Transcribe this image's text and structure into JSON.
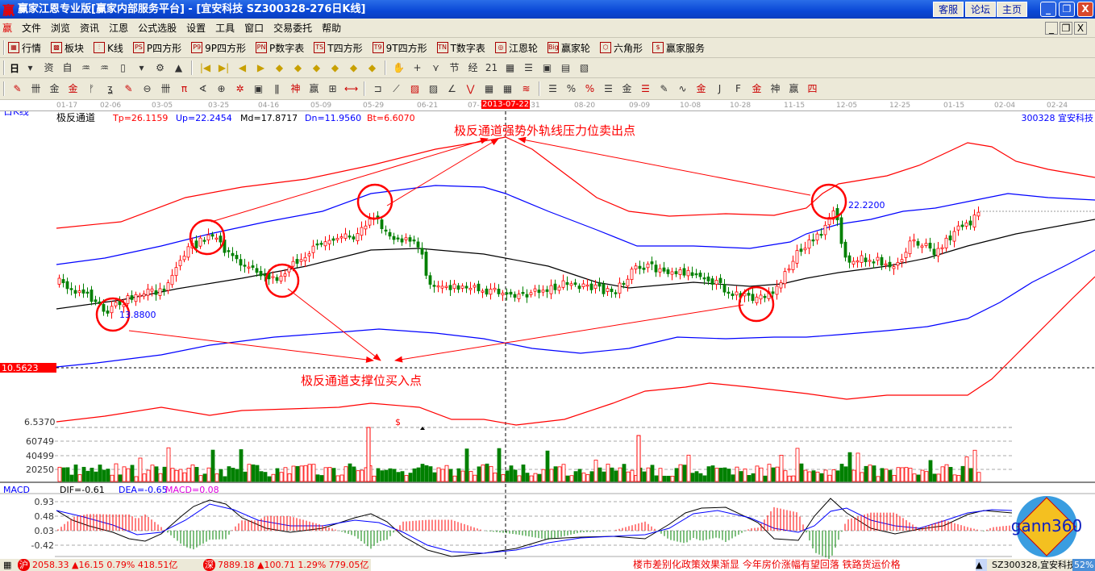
{
  "title": {
    "logo": "赢",
    "text": "赢家江恩专业版[赢家内部服务平台] - [宜安科技    SZ300328-276日K线]",
    "buttons": [
      "客服",
      "论坛",
      "主页"
    ],
    "win_controls": [
      "_",
      "❐",
      "X"
    ]
  },
  "menu": {
    "logo": "赢",
    "items": [
      "文件",
      "浏览",
      "资讯",
      "江恩",
      "公式选股",
      "设置",
      "工具",
      "窗口",
      "交易委托",
      "帮助"
    ],
    "mdi_controls": [
      "_",
      "❐",
      "X"
    ]
  },
  "toolbar1": [
    {
      "icon": "▦",
      "label": "行情"
    },
    {
      "icon": "▩",
      "label": "板块"
    },
    {
      "icon": "⫶",
      "label": "K线"
    },
    {
      "icon": "PS",
      "label": "P四方形"
    },
    {
      "icon": "P9",
      "label": "9P四方形"
    },
    {
      "icon": "PN",
      "label": "P数字表"
    },
    {
      "icon": "TS",
      "label": "T四方形"
    },
    {
      "icon": "T9",
      "label": "9T四方形"
    },
    {
      "icon": "TN",
      "label": "T数字表"
    },
    {
      "icon": "◎",
      "label": "江恩轮"
    },
    {
      "icon": "Big",
      "label": "赢家轮"
    },
    {
      "icon": "⬡",
      "label": "六角形"
    },
    {
      "icon": "$",
      "label": "赢家服务"
    }
  ],
  "toolbar2": {
    "period": "日",
    "icons": [
      "▾",
      "资",
      "自",
      "♒",
      "♒",
      "▯",
      "▾",
      "⚙",
      "▲",
      "|◀",
      "▶|",
      "◀",
      "▶",
      "◆",
      "◆",
      "◆",
      "◆",
      "◆",
      "◆",
      "✋",
      "+",
      "⋎",
      "节",
      "经",
      "21",
      "▦",
      "☰",
      "▣",
      "▤",
      "▧"
    ]
  },
  "toolbar3": {
    "icons": [
      "✎",
      "卌",
      "金",
      "金",
      "ᚠ",
      "ʓ",
      "✎",
      "⊖",
      "卌",
      "π",
      "∢",
      "⊕",
      "✲",
      "▣",
      "ǁ",
      "神",
      "赢",
      "⊞",
      "⟷",
      "⊐",
      "⟋",
      "▨",
      "▨",
      "∠",
      "⋁",
      "▦",
      "▦",
      "≋",
      "☰",
      "%",
      "%",
      "☰",
      "金",
      "☰",
      "✎",
      "∿",
      "金",
      "J",
      "F",
      "金",
      "神",
      "赢",
      "四"
    ]
  },
  "dates": [
    "01-17",
    "02-06",
    "03-05",
    "03-25",
    "04-16",
    "05-09",
    "05-29",
    "06-21",
    "07-1",
    "-31",
    "08-20",
    "09-09",
    "10-08",
    "10-28",
    "11-15",
    "12-05",
    "12-25",
    "01-15",
    "02-04",
    "02-24"
  ],
  "cursor_date": "2013-07-22",
  "chart": {
    "period_label": "日K线",
    "indicator": {
      "name": "极反通道",
      "tp": "Tp=26.1159",
      "up": "Up=22.2454",
      "md": "Md=17.8717",
      "dn": "Dn=11.9560",
      "bt": "Bt=6.6070"
    },
    "stock": "300328  宜安科技",
    "price_cursor": "10.5623",
    "low_label": "13.8800",
    "high_label": "22.2200",
    "annotation_sell": "极反通道强势外轨线压力位卖出点",
    "annotation_buy": "极反通道支撑位买入点",
    "bottom_axis": "6.5370",
    "dollar_mark": "$",
    "volume_axis": [
      "60749",
      "40499",
      "20250"
    ],
    "colors": {
      "tp": "#ff0000",
      "up": "#0000ff",
      "md": "#000000",
      "dn": "#0000ff",
      "bt": "#ff0000",
      "rise": "#ff0000",
      "fall": "#008000"
    }
  },
  "macd": {
    "label": "MACD",
    "dif": "DIF=-0.61",
    "dea": "DEA=-0.65",
    "macd": "MACD=0.08",
    "axis": [
      "0.93",
      "0.48",
      "0.03",
      "-0.42"
    ],
    "logo": "gann360"
  },
  "status": {
    "sh": "2058.33 ▲16.15 0.79% 418.51亿",
    "sz": "7889.18 ▲100.71 1.29% 779.05亿",
    "sh_icon": "沪",
    "sz_icon": "深",
    "news": "楼市差别化政策效果渐显 今年房价涨幅有望回落    铁路货运价格",
    "stock": "SZ300328,宜安科技",
    "percent": "52%"
  }
}
